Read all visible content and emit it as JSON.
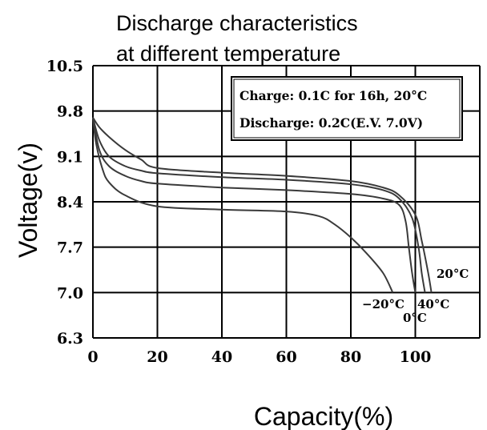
{
  "chart_data": {
    "type": "line",
    "title": "Discharge characteristics at different temperature",
    "title_lines": [
      "Discharge characteristics",
      "at different temperature"
    ],
    "xlabel": "Capacity(%)",
    "ylabel": "Voltage(v)",
    "xlim": [
      0,
      120
    ],
    "ylim": [
      6.3,
      10.5
    ],
    "x_ticks": [
      "0",
      "20",
      "40",
      "60",
      "80",
      "100"
    ],
    "y_ticks": [
      "6.3",
      "7.0",
      "7.7",
      "8.4",
      "9.1",
      "9.8",
      "10.5"
    ],
    "grid": true,
    "annotation_lines": [
      "Charge: 0.1C for 16h, 20°C",
      "Discharge: 0.2C(E.V. 7.0V)"
    ],
    "series": [
      {
        "name": "20°C",
        "x": [
          0,
          2,
          5,
          10,
          15,
          20,
          40,
          60,
          80,
          90,
          95,
          100,
          102,
          104,
          105
        ],
        "y": [
          9.7,
          9.55,
          9.4,
          9.2,
          9.05,
          8.92,
          8.85,
          8.8,
          8.72,
          8.62,
          8.5,
          8.2,
          7.8,
          7.3,
          7.0
        ]
      },
      {
        "name": "40°C",
        "x": [
          0,
          2,
          5,
          10,
          15,
          20,
          40,
          60,
          80,
          90,
          95,
          99,
          101,
          102,
          103
        ],
        "y": [
          9.7,
          9.35,
          9.1,
          8.95,
          8.88,
          8.84,
          8.78,
          8.74,
          8.67,
          8.58,
          8.45,
          8.15,
          7.7,
          7.3,
          7.0
        ]
      },
      {
        "name": "0°C",
        "x": [
          0,
          2,
          5,
          10,
          15,
          20,
          40,
          60,
          80,
          90,
          95,
          97,
          98,
          99,
          100
        ],
        "y": [
          9.7,
          9.2,
          8.95,
          8.8,
          8.72,
          8.68,
          8.62,
          8.58,
          8.52,
          8.45,
          8.35,
          8.1,
          7.7,
          7.3,
          7.0
        ]
      },
      {
        "name": "-20°C",
        "x": [
          0,
          1,
          3,
          5,
          10,
          20,
          40,
          60,
          70,
          75,
          80,
          85,
          90,
          93
        ],
        "y": [
          9.7,
          9.3,
          8.9,
          8.7,
          8.5,
          8.33,
          8.28,
          8.25,
          8.18,
          8.05,
          7.85,
          7.6,
          7.3,
          7.0
        ]
      }
    ],
    "curve_labels": [
      "20°C",
      "−20°C",
      "40°C",
      "0°C"
    ]
  }
}
